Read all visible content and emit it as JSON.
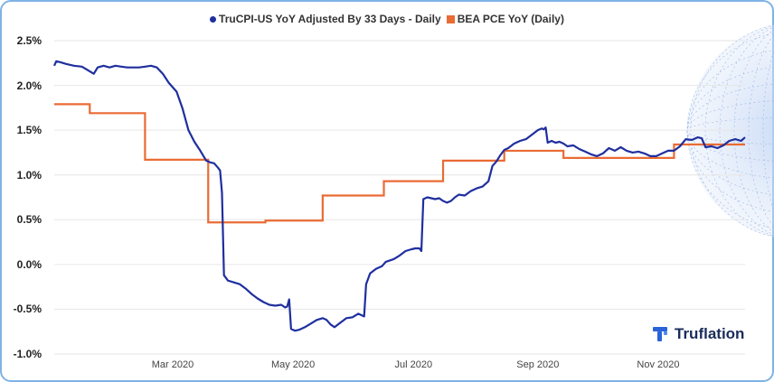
{
  "chart_data": {
    "type": "line",
    "title": "",
    "xlabel": "",
    "ylabel": "",
    "ylim": [
      -1.0,
      2.5
    ],
    "y_ticks": [
      "2.5%",
      "2.0%",
      "1.5%",
      "1.0%",
      "0.5%",
      "0.0%",
      "-0.5%",
      "-1.0%"
    ],
    "y_tick_values": [
      2.5,
      2.0,
      1.5,
      1.0,
      0.5,
      0.0,
      -0.5,
      -1.0
    ],
    "x_ticks": [
      {
        "label": "Mar 2020",
        "day": 60
      },
      {
        "label": "May 2020",
        "day": 121
      },
      {
        "label": "Jul 2020",
        "day": 182
      },
      {
        "label": "Sep 2020",
        "day": 245
      },
      {
        "label": "Nov 2020",
        "day": 306
      }
    ],
    "x_range_days": [
      0,
      350
    ],
    "series": [
      {
        "name": "TruCPI-US YoY Adjusted By 33 Days - Daily",
        "color": "#1f2f9e",
        "points": [
          [
            0,
            2.22
          ],
          [
            1,
            2.27
          ],
          [
            3,
            2.26
          ],
          [
            6,
            2.24
          ],
          [
            10,
            2.22
          ],
          [
            14,
            2.21
          ],
          [
            17,
            2.17
          ],
          [
            20,
            2.13
          ],
          [
            22,
            2.2
          ],
          [
            25,
            2.22
          ],
          [
            28,
            2.2
          ],
          [
            31,
            2.22
          ],
          [
            34,
            2.21
          ],
          [
            37,
            2.2
          ],
          [
            40,
            2.2
          ],
          [
            43,
            2.2
          ],
          [
            46,
            2.21
          ],
          [
            49,
            2.22
          ],
          [
            52,
            2.2
          ],
          [
            55,
            2.13
          ],
          [
            58,
            2.03
          ],
          [
            62,
            1.93
          ],
          [
            65,
            1.74
          ],
          [
            68,
            1.5
          ],
          [
            71,
            1.37
          ],
          [
            74,
            1.27
          ],
          [
            77,
            1.16
          ],
          [
            79,
            1.14
          ],
          [
            81,
            1.13
          ],
          [
            83,
            1.08
          ],
          [
            84,
            1.05
          ],
          [
            85,
            0.8
          ],
          [
            86,
            -0.12
          ],
          [
            88,
            -0.18
          ],
          [
            91,
            -0.2
          ],
          [
            94,
            -0.22
          ],
          [
            97,
            -0.27
          ],
          [
            100,
            -0.33
          ],
          [
            103,
            -0.38
          ],
          [
            106,
            -0.42
          ],
          [
            109,
            -0.45
          ],
          [
            112,
            -0.46
          ],
          [
            115,
            -0.45
          ],
          [
            117,
            -0.48
          ],
          [
            118,
            -0.47
          ],
          [
            119,
            -0.39
          ],
          [
            120,
            -0.72
          ],
          [
            122,
            -0.74
          ],
          [
            124,
            -0.73
          ],
          [
            127,
            -0.7
          ],
          [
            130,
            -0.66
          ],
          [
            133,
            -0.62
          ],
          [
            136,
            -0.6
          ],
          [
            138,
            -0.62
          ],
          [
            140,
            -0.67
          ],
          [
            142,
            -0.7
          ],
          [
            145,
            -0.65
          ],
          [
            148,
            -0.6
          ],
          [
            151,
            -0.59
          ],
          [
            154,
            -0.55
          ],
          [
            156,
            -0.57
          ],
          [
            157,
            -0.58
          ],
          [
            158,
            -0.22
          ],
          [
            160,
            -0.1
          ],
          [
            163,
            -0.05
          ],
          [
            166,
            -0.02
          ],
          [
            168,
            0.03
          ],
          [
            172,
            0.06
          ],
          [
            175,
            0.1
          ],
          [
            178,
            0.15
          ],
          [
            181,
            0.17
          ],
          [
            183,
            0.18
          ],
          [
            185,
            0.18
          ],
          [
            186,
            0.15
          ],
          [
            187,
            0.73
          ],
          [
            189,
            0.75
          ],
          [
            191,
            0.74
          ],
          [
            193,
            0.73
          ],
          [
            195,
            0.74
          ],
          [
            197,
            0.71
          ],
          [
            199,
            0.69
          ],
          [
            201,
            0.71
          ],
          [
            203,
            0.75
          ],
          [
            205,
            0.78
          ],
          [
            208,
            0.77
          ],
          [
            211,
            0.82
          ],
          [
            214,
            0.85
          ],
          [
            217,
            0.87
          ],
          [
            220,
            0.93
          ],
          [
            222,
            1.1
          ],
          [
            224,
            1.15
          ],
          [
            226,
            1.22
          ],
          [
            228,
            1.28
          ],
          [
            230,
            1.3
          ],
          [
            233,
            1.35
          ],
          [
            236,
            1.38
          ],
          [
            239,
            1.4
          ],
          [
            242,
            1.45
          ],
          [
            245,
            1.5
          ],
          [
            247,
            1.52
          ],
          [
            248,
            1.51
          ],
          [
            249,
            1.53
          ],
          [
            250,
            1.36
          ],
          [
            252,
            1.38
          ],
          [
            254,
            1.36
          ],
          [
            256,
            1.37
          ],
          [
            258,
            1.35
          ],
          [
            260,
            1.32
          ],
          [
            263,
            1.33
          ],
          [
            266,
            1.29
          ],
          [
            269,
            1.26
          ],
          [
            272,
            1.23
          ],
          [
            275,
            1.21
          ],
          [
            278,
            1.24
          ],
          [
            281,
            1.3
          ],
          [
            284,
            1.27
          ],
          [
            287,
            1.31
          ],
          [
            290,
            1.27
          ],
          [
            293,
            1.25
          ],
          [
            296,
            1.26
          ],
          [
            299,
            1.24
          ],
          [
            302,
            1.21
          ],
          [
            305,
            1.21
          ],
          [
            308,
            1.24
          ],
          [
            311,
            1.27
          ],
          [
            314,
            1.27
          ],
          [
            317,
            1.32
          ],
          [
            320,
            1.4
          ],
          [
            323,
            1.39
          ],
          [
            326,
            1.42
          ],
          [
            328,
            1.41
          ],
          [
            330,
            1.31
          ],
          [
            333,
            1.32
          ],
          [
            336,
            1.3
          ],
          [
            339,
            1.33
          ],
          [
            342,
            1.38
          ],
          [
            345,
            1.4
          ],
          [
            348,
            1.38
          ],
          [
            350,
            1.42
          ]
        ]
      },
      {
        "name": "BEA PCE YoY (Daily)",
        "color": "#ea6b34",
        "steps": [
          [
            0,
            1.79
          ],
          [
            18,
            1.69
          ],
          [
            46,
            1.17
          ],
          [
            78,
            0.47
          ],
          [
            107,
            0.49
          ],
          [
            136,
            0.77
          ],
          [
            167,
            0.93
          ],
          [
            197,
            1.16
          ],
          [
            228,
            1.27
          ],
          [
            258,
            1.19
          ],
          [
            314,
            1.34
          ],
          [
            350,
            1.34
          ]
        ]
      }
    ]
  },
  "legend": [
    {
      "label": "TruCPI-US YoY Adjusted By 33 Days - Daily",
      "color": "#1f2f9e",
      "shape": "dot"
    },
    {
      "label": "BEA PCE YoY (Daily)",
      "color": "#ea6b34",
      "shape": "square"
    }
  ],
  "brand": {
    "name": "Truflation"
  }
}
